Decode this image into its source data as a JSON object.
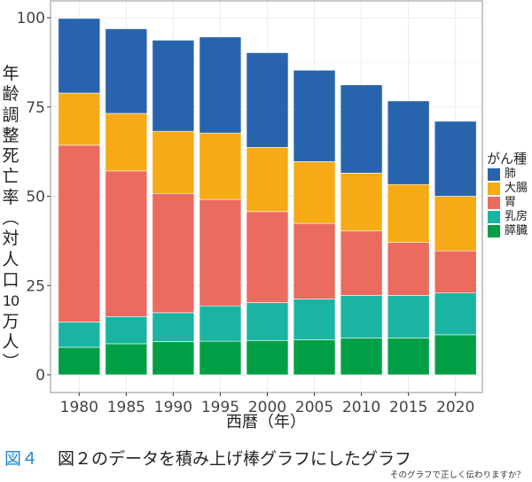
{
  "chart_data": {
    "type": "bar",
    "stacked": true,
    "categories": [
      "1980",
      "1985",
      "1990",
      "1995",
      "2000",
      "2005",
      "2010",
      "2015",
      "2020"
    ],
    "series": [
      {
        "name": "膵臓",
        "color": "#009F45",
        "values": [
          7.7,
          8.7,
          9.3,
          9.4,
          9.6,
          9.8,
          10.3,
          10.3,
          11.2
        ]
      },
      {
        "name": "乳房",
        "color": "#1AB5A2",
        "values": [
          7.1,
          7.6,
          8.1,
          9.9,
          10.6,
          11.4,
          11.9,
          11.9,
          11.7
        ]
      },
      {
        "name": "胃",
        "color": "#EB6B5E",
        "values": [
          49.5,
          40.8,
          33.4,
          29.8,
          25.5,
          21.2,
          18.1,
          14.9,
          11.8
        ]
      },
      {
        "name": "大腸",
        "color": "#F5AA16",
        "values": [
          14.6,
          16.1,
          17.4,
          18.6,
          18.0,
          17.3,
          16.2,
          16.2,
          15.3
        ]
      },
      {
        "name": "肺",
        "color": "#2864AE",
        "values": [
          20.9,
          23.7,
          25.5,
          26.9,
          26.5,
          25.6,
          24.7,
          23.4,
          21.0
        ]
      }
    ],
    "legend_order": [
      "肺",
      "大腸",
      "胃",
      "乳房",
      "膵臓"
    ],
    "title": "",
    "xlabel": "西暦（年）",
    "ylabel": "年齢調整死亡率（対人口10万人）",
    "ylim": [
      0,
      100
    ],
    "yticks": [
      "0",
      "25",
      "50",
      "75",
      "100"
    ],
    "grid": true,
    "legend_title": "がん種",
    "legend_position": "right"
  },
  "ylabel_chars": [
    "年",
    "齢",
    "調",
    "整",
    "死",
    "亡",
    "率",
    "︵",
    "対",
    "人",
    "口",
    "10",
    "万",
    "人",
    "︶"
  ],
  "caption": {
    "figure_label": "図４",
    "text": "図２のデータを積み上げ棒グラフにしたグラフ",
    "subtext": "そのグラフで正しく伝わりますか？"
  }
}
